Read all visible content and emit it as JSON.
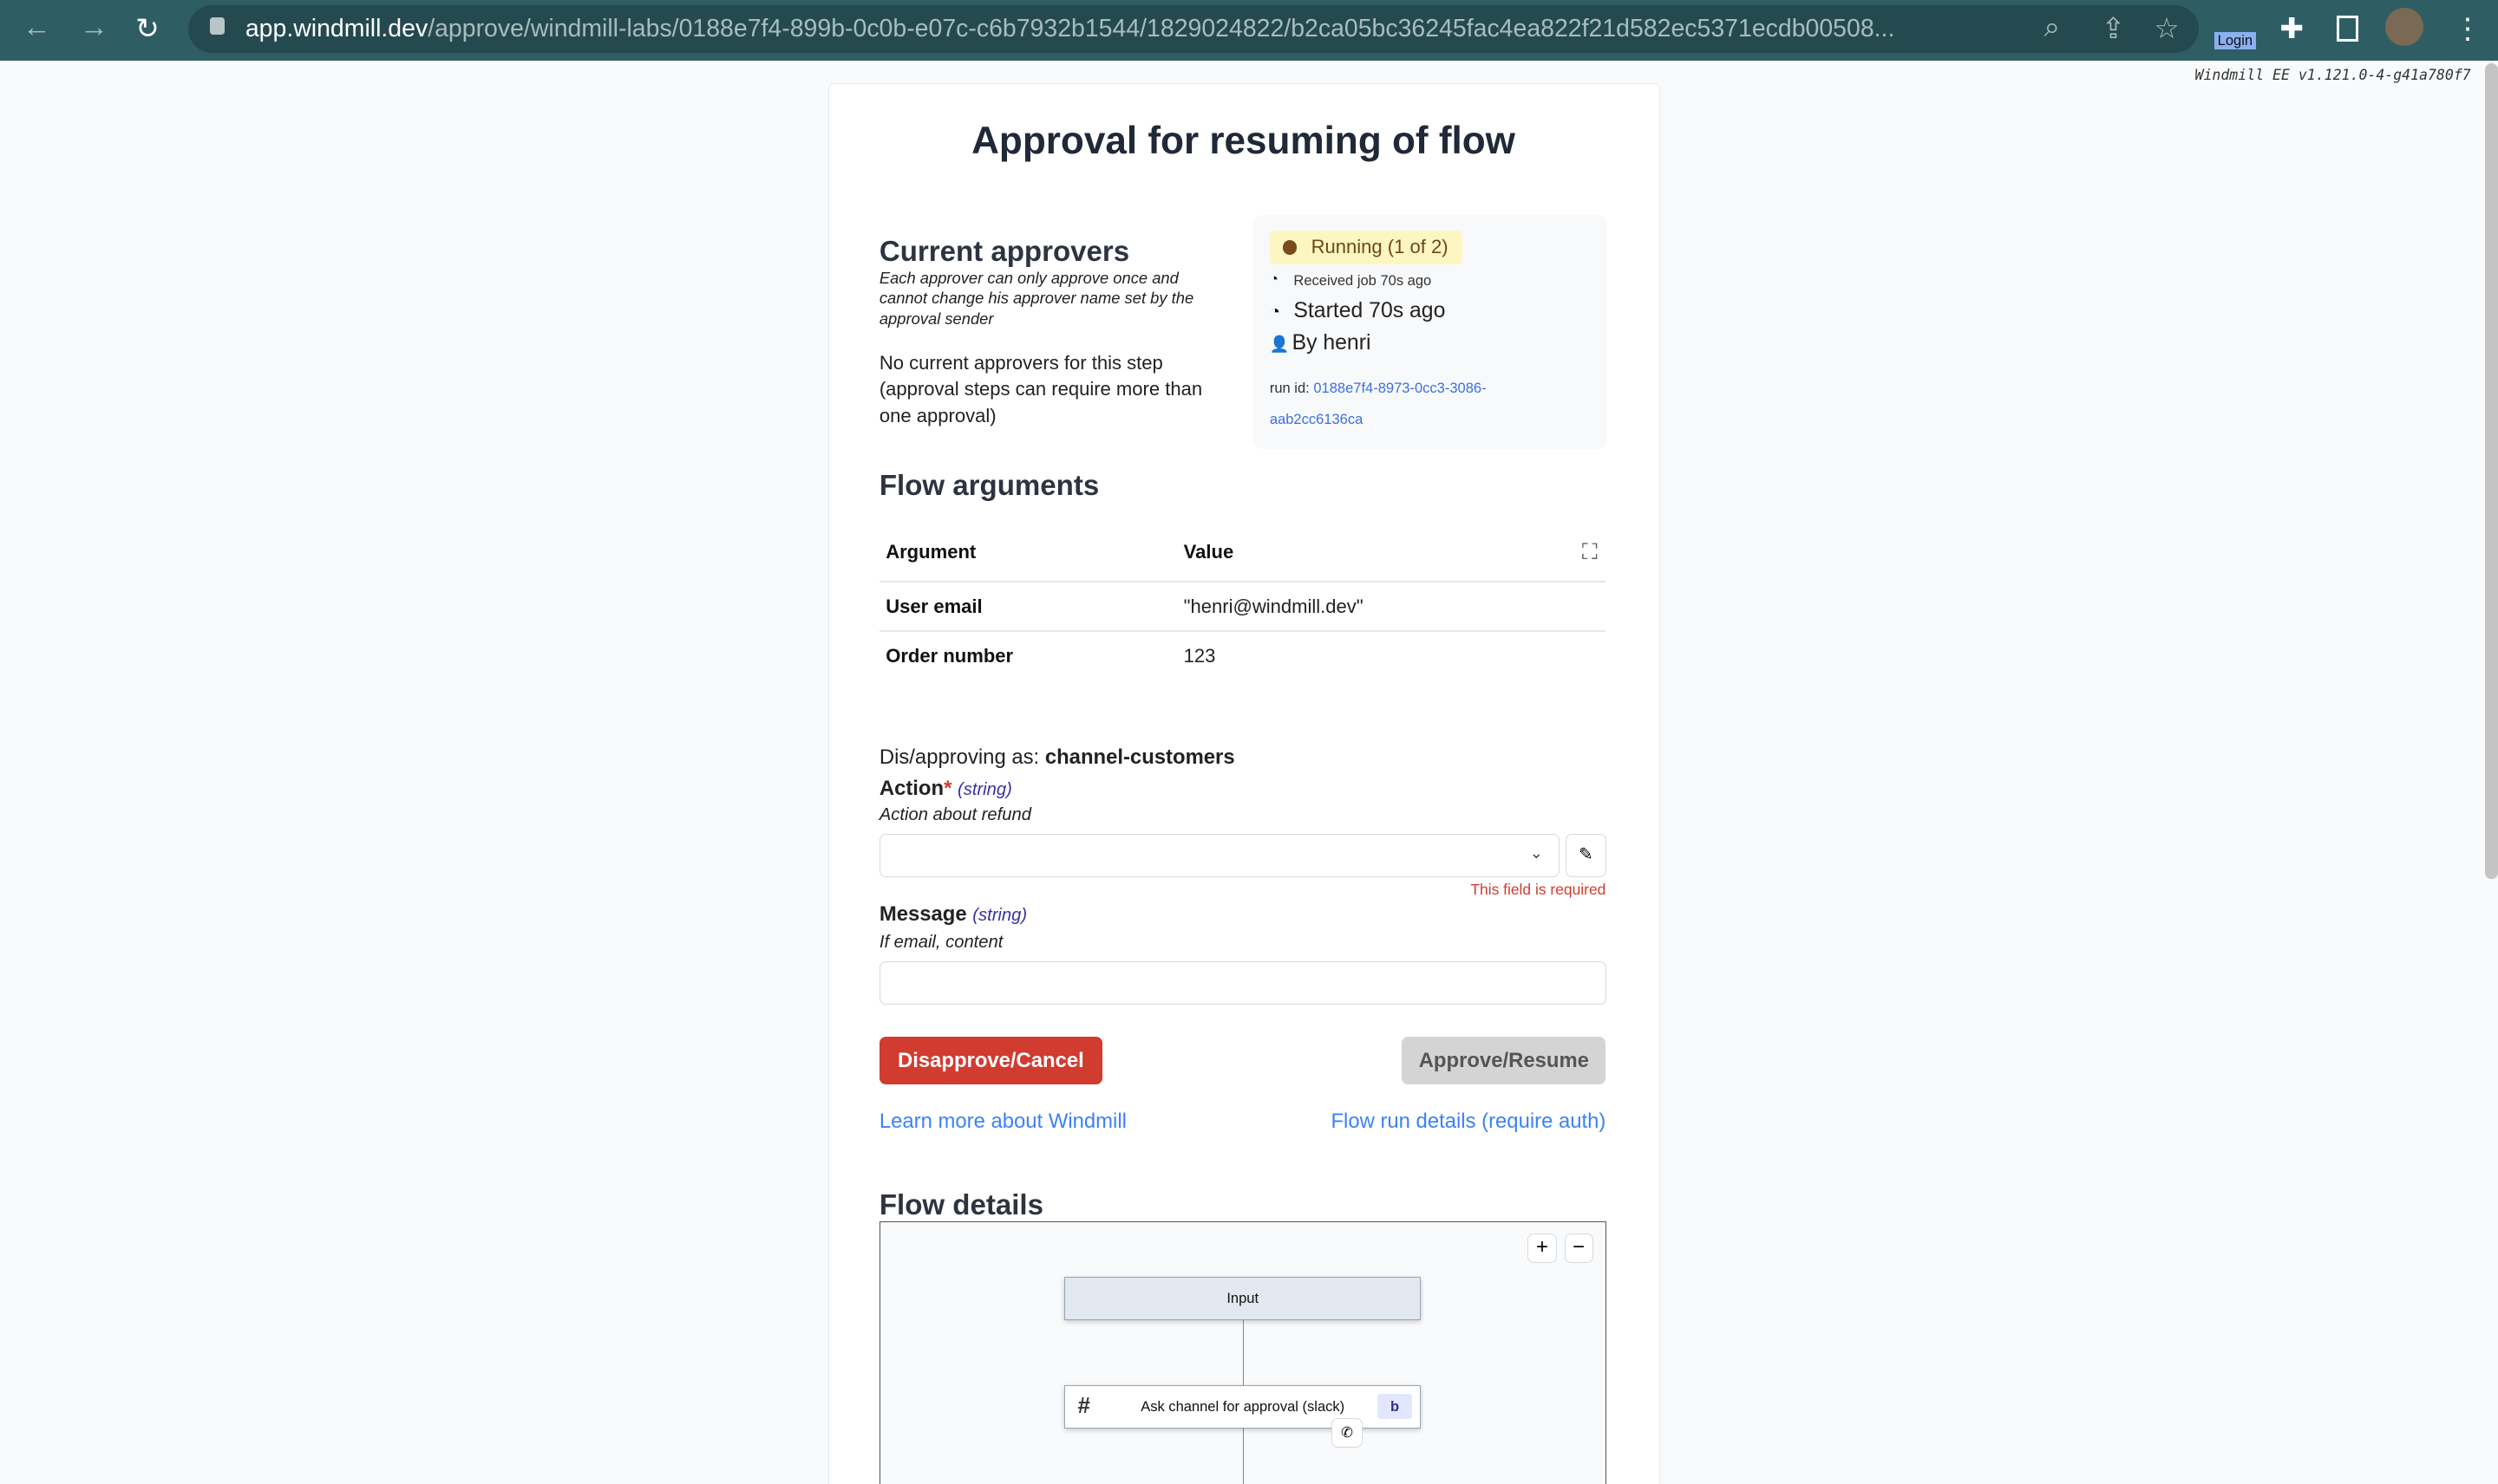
{
  "browser": {
    "url_host": "app.windmill.dev",
    "url_path": "/approve/windmill-labs/0188e7f4-899b-0c0b-e07c-c6b7932b1544/1829024822/b2ca05bc36245fac4ea822f21d582ec5371ecdb00508...",
    "extension_label": "Login"
  },
  "version": "Windmill EE v1.121.0-4-g41a780f7",
  "title": "Approval for resuming of flow",
  "approvers": {
    "heading": "Current approvers",
    "note": "Each approver can only approve once and cannot change his approver name set by the approval sender",
    "empty": "No current approvers for this step (approval steps can require more than one approval)"
  },
  "status": {
    "badge": "Running (1 of 2)",
    "received": "Received job 70s ago",
    "started": "Started 70s ago",
    "by": "By henri",
    "run_id_label": "run id:",
    "run_id": "0188e7f4-8973-0cc3-3086-aab2cc6136ca",
    "badge_color": "#fdf6c3"
  },
  "arguments": {
    "heading": "Flow arguments",
    "columns": [
      "Argument",
      "Value"
    ],
    "rows": [
      {
        "name": "User email",
        "value": "\"henri@windmill.dev\""
      },
      {
        "name": "Order number",
        "value": "123"
      }
    ]
  },
  "form": {
    "approving_as_label": "Dis/approving as:",
    "approving_as": "channel-customers",
    "action": {
      "label": "Action",
      "required": "*",
      "type": "(string)",
      "description": "Action about refund",
      "value": "",
      "error": "This field is required"
    },
    "message": {
      "label": "Message",
      "type": "(string)",
      "description": "If email, content",
      "value": ""
    }
  },
  "buttons": {
    "disapprove": "Disapprove/Cancel",
    "approve": "Approve/Resume",
    "disapprove_color": "#d13b30"
  },
  "links": {
    "learn": "Learn more about Windmill",
    "details": "Flow run details (require auth)"
  },
  "flow": {
    "heading": "Flow details",
    "nodes": [
      {
        "label": "Input"
      },
      {
        "label": "Ask channel for approval (slack)",
        "badge": "b"
      }
    ]
  }
}
